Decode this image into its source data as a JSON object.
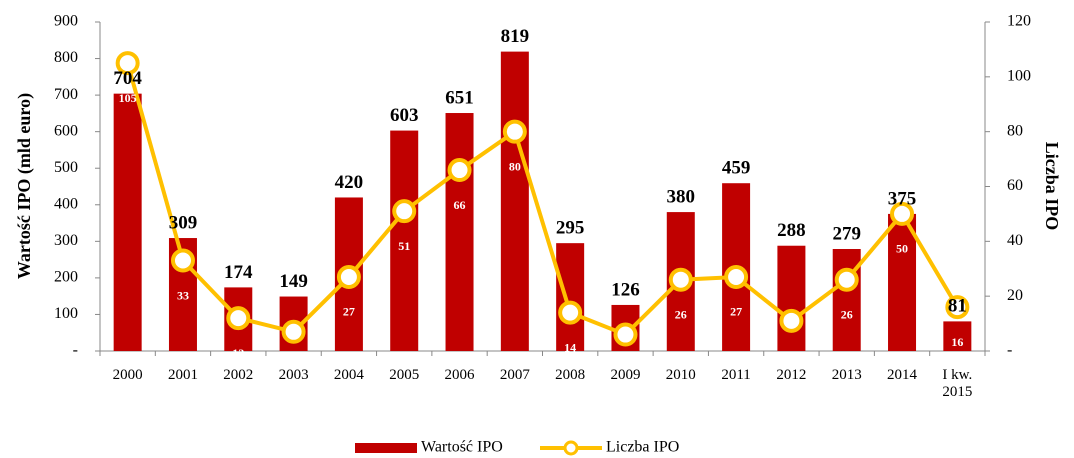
{
  "chart_data": {
    "type": "bar-line",
    "categories": [
      "2000",
      "2001",
      "2002",
      "2003",
      "2004",
      "2005",
      "2006",
      "2007",
      "2008",
      "2009",
      "2010",
      "2011",
      "2012",
      "2013",
      "2014",
      "I kw. 2015"
    ],
    "ylabel": "Wartość IPO (mld euro)",
    "y2label": "Liczba IPO",
    "ylim": [
      0,
      900
    ],
    "yticks": [
      {
        "value": 0,
        "label": "-"
      },
      100,
      200,
      300,
      400,
      500,
      600,
      700,
      800,
      900
    ],
    "y2lim": [
      0,
      120
    ],
    "y2ticks": [
      {
        "value": 0,
        "label": "-"
      },
      20,
      40,
      60,
      80,
      100,
      120
    ],
    "legend": "bottom",
    "series": [
      {
        "name": "Wartość IPO",
        "type": "bar",
        "color": "#c00000",
        "values": [
          704,
          309,
          174,
          149,
          420,
          603,
          651,
          819,
          295,
          126,
          380,
          459,
          288,
          279,
          375,
          81
        ]
      },
      {
        "name": "Liczba IPO",
        "type": "line",
        "axis": "y2",
        "color": "#ffc000",
        "values": [
          105,
          33,
          12,
          7,
          27,
          51,
          66,
          80,
          14,
          6,
          26,
          27,
          11,
          26,
          50,
          16
        ],
        "value_labels": [
          "105",
          "33",
          "12",
          "7",
          "27",
          "51",
          "66",
          "80",
          "14",
          null,
          "26",
          "27",
          "11",
          "26",
          "50",
          "16"
        ]
      }
    ]
  }
}
